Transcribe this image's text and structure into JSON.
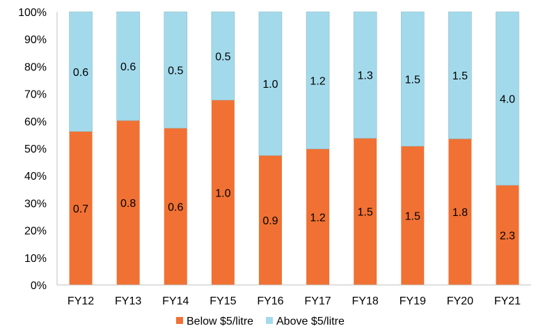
{
  "chart_data": {
    "type": "bar",
    "stacked": true,
    "normalized": true,
    "categories": [
      "FY12",
      "FY13",
      "FY14",
      "FY15",
      "FY16",
      "FY17",
      "FY18",
      "FY19",
      "FY20",
      "FY21"
    ],
    "series": [
      {
        "name": "Below $5/litre",
        "values": [
          0.7,
          0.8,
          0.6,
          1.0,
          0.9,
          1.2,
          1.5,
          1.5,
          1.8,
          2.3
        ],
        "labels": [
          "0.7",
          "0.8",
          "0.6",
          "1.0",
          "0.9",
          "1.2",
          "1.5",
          "1.5",
          "1.8",
          "2.3"
        ],
        "color": "#F07133"
      },
      {
        "name": "Above $5/litre",
        "values": [
          0.6,
          0.6,
          0.5,
          0.5,
          1.0,
          1.2,
          1.3,
          1.5,
          1.5,
          4.0
        ],
        "labels": [
          "0.6",
          "0.6",
          "0.5",
          "0.5",
          "1.0",
          "1.2",
          "1.3",
          "1.5",
          "1.5",
          "4.0"
        ],
        "color": "#A3DAEB"
      }
    ],
    "below_share_pct": [
      56.2,
      60.2,
      57.4,
      67.7,
      47.4,
      49.8,
      53.7,
      50.8,
      53.5,
      36.5
    ],
    "yticks": [
      "0%",
      "10%",
      "20%",
      "30%",
      "40%",
      "50%",
      "60%",
      "70%",
      "80%",
      "90%",
      "100%"
    ],
    "ylim": [
      0,
      100
    ],
    "grid": false,
    "legend": "bottom",
    "title": "",
    "xlabel": "",
    "ylabel": ""
  }
}
